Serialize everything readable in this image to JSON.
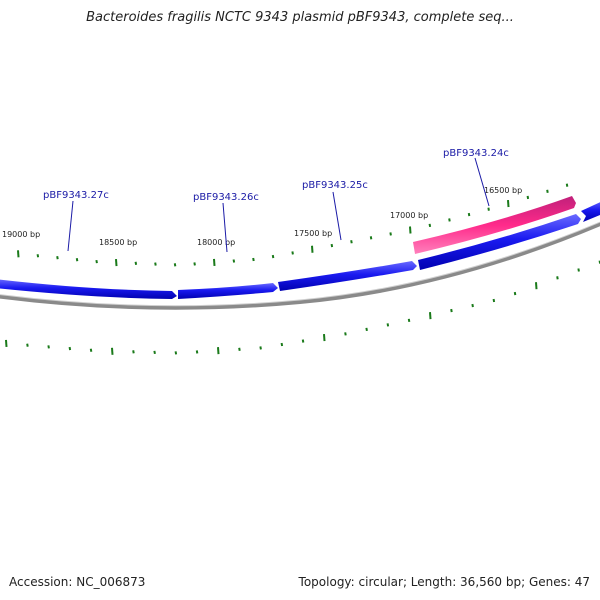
{
  "title": "Bacteroides fragilis NCTC 9343 plasmid pBF9343, complete seq...",
  "footer": {
    "accession": "Accession: NC_006873",
    "summary": "Topology: circular; Length: 36,560 bp; Genes: 47"
  },
  "colors": {
    "forward_gene": "#ff2a8a",
    "reverse_gene": "#1010e6",
    "backbone": "#888888",
    "ticks": "#1a7a1a",
    "label": "#1a1aa6"
  },
  "position_labels": [
    "19000 bp",
    "18500 bp",
    "18000 bp",
    "17500 bp",
    "17000 bp",
    "16500 bp"
  ],
  "gene_labels": [
    "pBF9343.27c",
    "pBF9343.26c",
    "pBF9343.25c",
    "pBF9343.24c"
  ]
}
